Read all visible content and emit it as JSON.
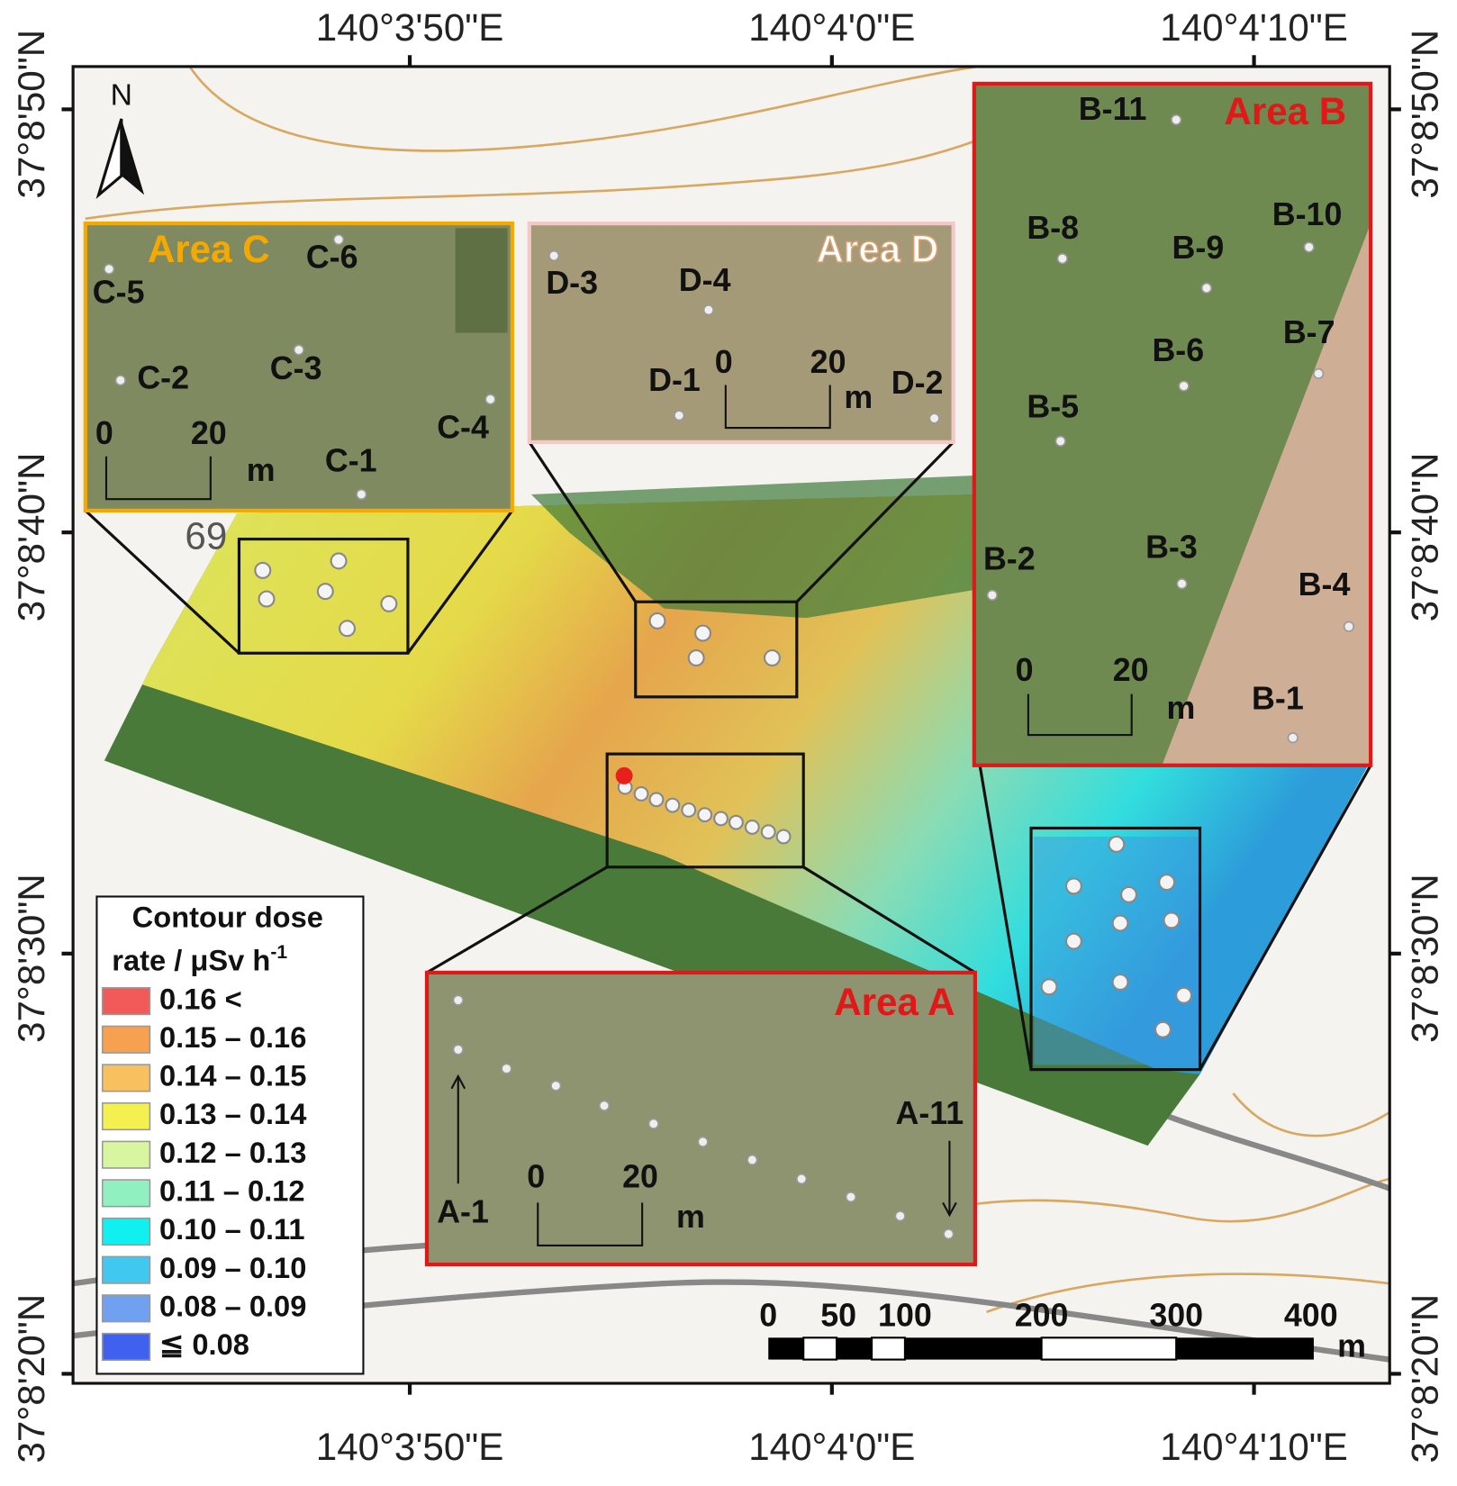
{
  "axes": {
    "top": [
      "140°3'50\"E",
      "140°4'0\"E",
      "140°4'10\"E"
    ],
    "bottom": [
      "140°3'50\"E",
      "140°4'0\"E",
      "140°4'10\"E"
    ],
    "left": [
      "37°8'50\"N",
      "37°8'40\"N",
      "37°8'30\"N",
      "37°8'20\"N"
    ],
    "right": [
      "37°8'50\"N",
      "37°8'40\"N",
      "37°8'30\"N",
      "37°8'20\"N"
    ]
  },
  "north": "N",
  "map_label": "69",
  "areas": {
    "C": {
      "title": "Area C",
      "points": [
        "C-5",
        "C-6",
        "C-2",
        "C-3",
        "C-4",
        "C-1"
      ],
      "scale": [
        "0",
        "20",
        "m"
      ]
    },
    "D": {
      "title": "Area D",
      "points": [
        "D-3",
        "D-4",
        "D-1",
        "D-2"
      ],
      "scale": [
        "0",
        "20",
        "m"
      ]
    },
    "B": {
      "title": "Area B",
      "points": [
        "B-11",
        "B-8",
        "B-10",
        "B-9",
        "B-7",
        "B-6",
        "B-5",
        "B-2",
        "B-3",
        "B-4",
        "B-1"
      ],
      "scale": [
        "0",
        "20",
        "m"
      ]
    },
    "A": {
      "title": "Area A",
      "points": [
        "A-1",
        "A-11"
      ],
      "scale": [
        "0",
        "20",
        "m"
      ]
    }
  },
  "legend": {
    "title": [
      "Contour dose",
      "rate / μSv h",
      "-1"
    ],
    "items": [
      {
        "label": "0.16 <",
        "color": "#f25a5a"
      },
      {
        "label": "0.15 – 0.16",
        "color": "#f7a050"
      },
      {
        "label": "0.14 – 0.15",
        "color": "#f9c060"
      },
      {
        "label": "0.13 – 0.14",
        "color": "#f4f050"
      },
      {
        "label": "0.12 – 0.13",
        "color": "#d8f5a0"
      },
      {
        "label": "0.11 – 0.12",
        "color": "#90f0c0"
      },
      {
        "label": "0.10 – 0.11",
        "color": "#10f0f0"
      },
      {
        "label": "0.09 – 0.10",
        "color": "#40c8f0"
      },
      {
        "label": "0.08 – 0.09",
        "color": "#70a0f0"
      },
      {
        "label": "≦ 0.08",
        "color": "#4060f0"
      }
    ]
  },
  "scale_bar": {
    "ticks": [
      "0",
      "50",
      "100",
      "200",
      "300",
      "400"
    ],
    "unit": "m"
  }
}
